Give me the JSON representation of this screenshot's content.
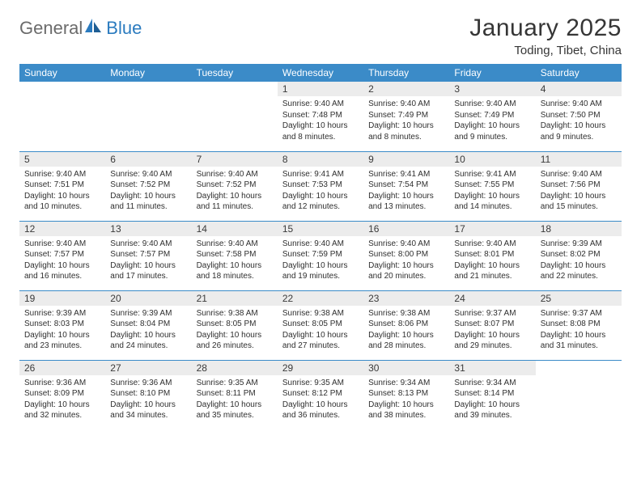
{
  "logo": {
    "part1": "General",
    "part2": "Blue"
  },
  "title": "January 2025",
  "location": "Toding, Tibet, China",
  "colors": {
    "header_bg": "#3b8bc8",
    "header_text": "#ffffff",
    "daynum_bg": "#ececec",
    "rule": "#3b8bc8",
    "logo_gray": "#6b6b6b",
    "logo_blue": "#2b7bbf"
  },
  "day_headers": [
    "Sunday",
    "Monday",
    "Tuesday",
    "Wednesday",
    "Thursday",
    "Friday",
    "Saturday"
  ],
  "weeks": [
    [
      null,
      null,
      null,
      {
        "n": "1",
        "sr": "9:40 AM",
        "ss": "7:48 PM",
        "dl": "10 hours and 8 minutes."
      },
      {
        "n": "2",
        "sr": "9:40 AM",
        "ss": "7:49 PM",
        "dl": "10 hours and 8 minutes."
      },
      {
        "n": "3",
        "sr": "9:40 AM",
        "ss": "7:49 PM",
        "dl": "10 hours and 9 minutes."
      },
      {
        "n": "4",
        "sr": "9:40 AM",
        "ss": "7:50 PM",
        "dl": "10 hours and 9 minutes."
      }
    ],
    [
      {
        "n": "5",
        "sr": "9:40 AM",
        "ss": "7:51 PM",
        "dl": "10 hours and 10 minutes."
      },
      {
        "n": "6",
        "sr": "9:40 AM",
        "ss": "7:52 PM",
        "dl": "10 hours and 11 minutes."
      },
      {
        "n": "7",
        "sr": "9:40 AM",
        "ss": "7:52 PM",
        "dl": "10 hours and 11 minutes."
      },
      {
        "n": "8",
        "sr": "9:41 AM",
        "ss": "7:53 PM",
        "dl": "10 hours and 12 minutes."
      },
      {
        "n": "9",
        "sr": "9:41 AM",
        "ss": "7:54 PM",
        "dl": "10 hours and 13 minutes."
      },
      {
        "n": "10",
        "sr": "9:41 AM",
        "ss": "7:55 PM",
        "dl": "10 hours and 14 minutes."
      },
      {
        "n": "11",
        "sr": "9:40 AM",
        "ss": "7:56 PM",
        "dl": "10 hours and 15 minutes."
      }
    ],
    [
      {
        "n": "12",
        "sr": "9:40 AM",
        "ss": "7:57 PM",
        "dl": "10 hours and 16 minutes."
      },
      {
        "n": "13",
        "sr": "9:40 AM",
        "ss": "7:57 PM",
        "dl": "10 hours and 17 minutes."
      },
      {
        "n": "14",
        "sr": "9:40 AM",
        "ss": "7:58 PM",
        "dl": "10 hours and 18 minutes."
      },
      {
        "n": "15",
        "sr": "9:40 AM",
        "ss": "7:59 PM",
        "dl": "10 hours and 19 minutes."
      },
      {
        "n": "16",
        "sr": "9:40 AM",
        "ss": "8:00 PM",
        "dl": "10 hours and 20 minutes."
      },
      {
        "n": "17",
        "sr": "9:40 AM",
        "ss": "8:01 PM",
        "dl": "10 hours and 21 minutes."
      },
      {
        "n": "18",
        "sr": "9:39 AM",
        "ss": "8:02 PM",
        "dl": "10 hours and 22 minutes."
      }
    ],
    [
      {
        "n": "19",
        "sr": "9:39 AM",
        "ss": "8:03 PM",
        "dl": "10 hours and 23 minutes."
      },
      {
        "n": "20",
        "sr": "9:39 AM",
        "ss": "8:04 PM",
        "dl": "10 hours and 24 minutes."
      },
      {
        "n": "21",
        "sr": "9:38 AM",
        "ss": "8:05 PM",
        "dl": "10 hours and 26 minutes."
      },
      {
        "n": "22",
        "sr": "9:38 AM",
        "ss": "8:05 PM",
        "dl": "10 hours and 27 minutes."
      },
      {
        "n": "23",
        "sr": "9:38 AM",
        "ss": "8:06 PM",
        "dl": "10 hours and 28 minutes."
      },
      {
        "n": "24",
        "sr": "9:37 AM",
        "ss": "8:07 PM",
        "dl": "10 hours and 29 minutes."
      },
      {
        "n": "25",
        "sr": "9:37 AM",
        "ss": "8:08 PM",
        "dl": "10 hours and 31 minutes."
      }
    ],
    [
      {
        "n": "26",
        "sr": "9:36 AM",
        "ss": "8:09 PM",
        "dl": "10 hours and 32 minutes."
      },
      {
        "n": "27",
        "sr": "9:36 AM",
        "ss": "8:10 PM",
        "dl": "10 hours and 34 minutes."
      },
      {
        "n": "28",
        "sr": "9:35 AM",
        "ss": "8:11 PM",
        "dl": "10 hours and 35 minutes."
      },
      {
        "n": "29",
        "sr": "9:35 AM",
        "ss": "8:12 PM",
        "dl": "10 hours and 36 minutes."
      },
      {
        "n": "30",
        "sr": "9:34 AM",
        "ss": "8:13 PM",
        "dl": "10 hours and 38 minutes."
      },
      {
        "n": "31",
        "sr": "9:34 AM",
        "ss": "8:14 PM",
        "dl": "10 hours and 39 minutes."
      },
      null
    ]
  ],
  "labels": {
    "sunrise": "Sunrise:",
    "sunset": "Sunset:",
    "daylight": "Daylight:"
  }
}
